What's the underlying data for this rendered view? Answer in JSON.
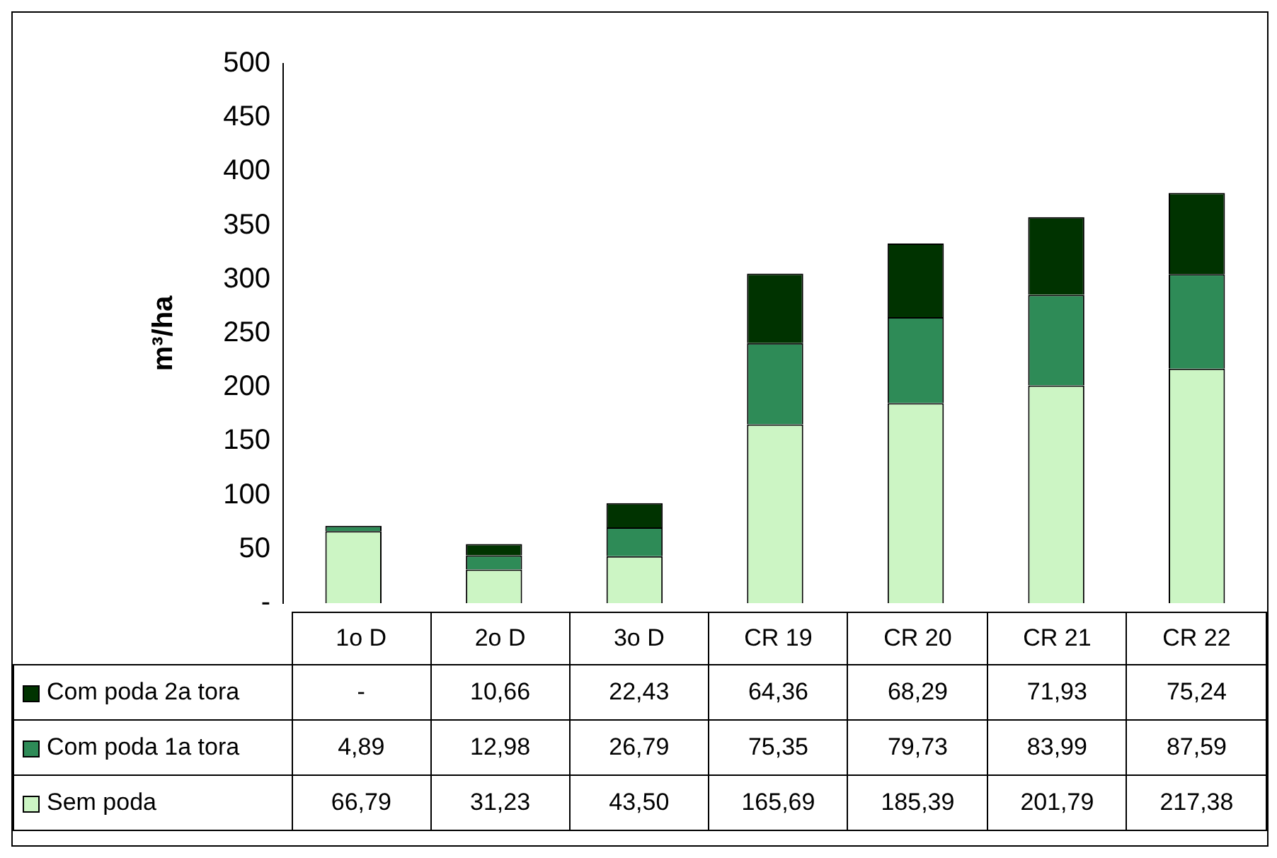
{
  "chart_data": {
    "type": "bar",
    "ylabel": "m³/ha",
    "stacked": true,
    "categories": [
      "1o D",
      "2o D",
      "3o D",
      "CR 19",
      "CR 20",
      "CR 21",
      "CR 22"
    ],
    "series": [
      {
        "name": "Sem poda",
        "color": "#ccf5c4",
        "values": [
          66.79,
          31.23,
          43.5,
          165.69,
          185.39,
          201.79,
          217.38
        ],
        "value_labels": [
          "66,79",
          "31,23",
          "43,50",
          "165,69",
          "185,39",
          "201,79",
          "217,38"
        ]
      },
      {
        "name": "Com poda 1a tora",
        "color": "#2e8b57",
        "values": [
          4.89,
          12.98,
          26.79,
          75.35,
          79.73,
          83.99,
          87.59
        ],
        "value_labels": [
          "4,89",
          "12,98",
          "26,79",
          "75,35",
          "79,73",
          "83,99",
          "87,59"
        ]
      },
      {
        "name": "Com poda 2a tora",
        "color": "#003300",
        "values": [
          null,
          10.66,
          22.43,
          64.36,
          68.29,
          71.93,
          75.24
        ],
        "value_labels": [
          "-",
          "10,66",
          "22,43",
          "64,36",
          "68,29",
          "71,93",
          "75,24"
        ]
      }
    ],
    "ylim": [
      0,
      500
    ],
    "yticks": [
      {
        "value": 0,
        "label": "-"
      },
      50,
      100,
      150,
      200,
      250,
      300,
      350,
      400,
      450,
      500
    ],
    "grid": false,
    "legend": "bottom left"
  }
}
